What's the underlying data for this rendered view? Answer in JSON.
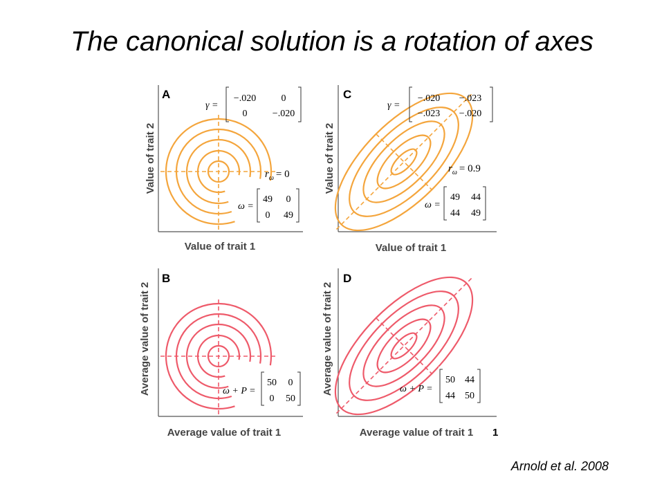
{
  "slide": {
    "title": "The canonical solution is a rotation of axes",
    "citation": "Arnold et al. 2008"
  },
  "colors": {
    "orange": "#f4a53c",
    "red": "#ee5a6a",
    "axis": "#555555"
  },
  "panels": {
    "A": {
      "letter": "A",
      "xlabel": "Value of trait 1",
      "ylabel": "Value of trait 2",
      "gamma_symbol": "γ =",
      "gamma": [
        "−.020",
        "0",
        "0",
        "−.020"
      ],
      "r_symbol": "r",
      "r_sub": "ω",
      "r_value": "= 0",
      "matrix_symbol": "ω =",
      "matrix": [
        "49",
        "0",
        "0",
        "49"
      ]
    },
    "B": {
      "letter": "B",
      "xlabel": "Average value of trait 1",
      "ylabel": "Average value of trait 2",
      "matrix_symbol": "ω + P =",
      "matrix": [
        "50",
        "0",
        "0",
        "50"
      ]
    },
    "C": {
      "letter": "C",
      "xlabel": "Value of trait 1",
      "ylabel": "Value of trait 2",
      "gamma_symbol": "γ =",
      "gamma": [
        "−.020",
        "−.023",
        "−.023",
        "−.020"
      ],
      "r_symbol": "r",
      "r_sub": "ω",
      "r_value": "= 0.9",
      "matrix_symbol": "ω =",
      "matrix": [
        "49",
        "44",
        "44",
        "49"
      ]
    },
    "D": {
      "letter": "D",
      "xlabel": "Average value of trait 1",
      "ylabel": "Average value of trait 2",
      "matrix_symbol": "ω + P =",
      "matrix": [
        "50",
        "44",
        "44",
        "50"
      ]
    }
  }
}
